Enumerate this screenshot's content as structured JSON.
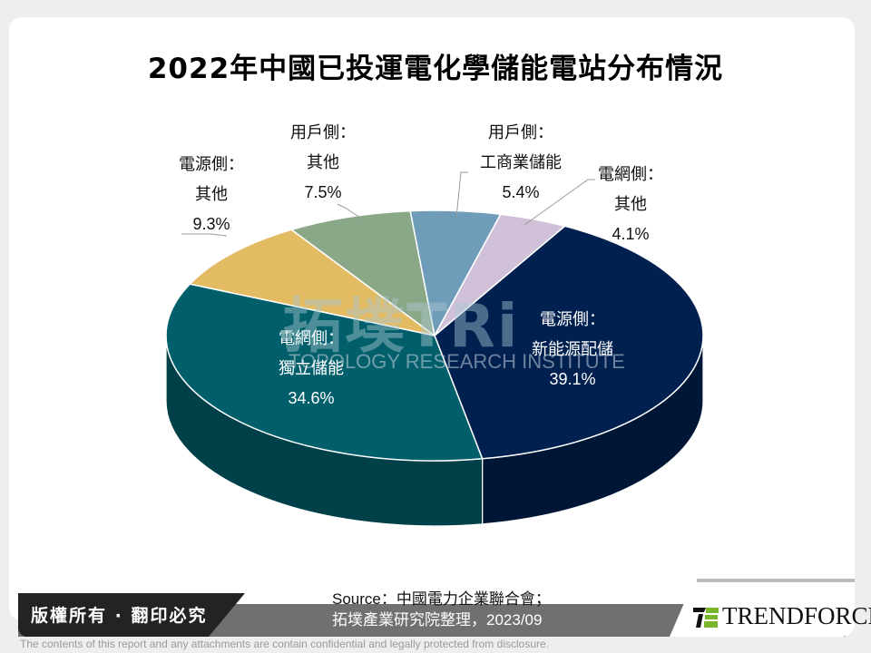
{
  "title": "2022年中國已投運電化學儲能電站分布情況",
  "chart_data": {
    "type": "pie",
    "title": "2022年中國已投運電化學儲能電站分布情況",
    "categories": [
      "電源側：新能源配儲",
      "電網側：獨立儲能",
      "電源側：其他",
      "用戶側：其他",
      "用戶側：工商業儲能",
      "電網側：其他"
    ],
    "values": [
      39.1,
      34.6,
      9.3,
      7.5,
      5.4,
      4.1
    ],
    "unit": "%",
    "colors": [
      "#002050",
      "#005f6b",
      "#e3bb63",
      "#8aa888",
      "#6f9cb8",
      "#d0c1d9"
    ],
    "style": "3d-pie",
    "legend": "none (data labels on/around slices)"
  },
  "labels": [
    {
      "line1": "電源側：",
      "line2": "新能源配儲",
      "value": "39.1%"
    },
    {
      "line1": "電網側：",
      "line2": "獨立儲能",
      "value": "34.6%"
    },
    {
      "line1": "電源側：",
      "line2": "其他",
      "value": "9.3%"
    },
    {
      "line1": "用戶側：",
      "line2": "其他",
      "value": "7.5%"
    },
    {
      "line1": "用戶側：",
      "line2": "工商業儲能",
      "value": "5.4%"
    },
    {
      "line1": "電網側：",
      "line2": "其他",
      "value": "4.1%"
    }
  ],
  "watermark": {
    "cn": "拓墣TRi",
    "en": "TOPOLOGY RESEARCH INSTITUTE"
  },
  "source": {
    "line1": "Source：中國電力企業聯合會；",
    "line2": "拓墣產業研究院整理，2023/09"
  },
  "footer": {
    "copyright": "版權所有 · 翻印必究",
    "brand": "TRENDFORCE",
    "disclaimer": "The contents of this report and any attachments are contain confidential and legally protected from disclosure."
  }
}
